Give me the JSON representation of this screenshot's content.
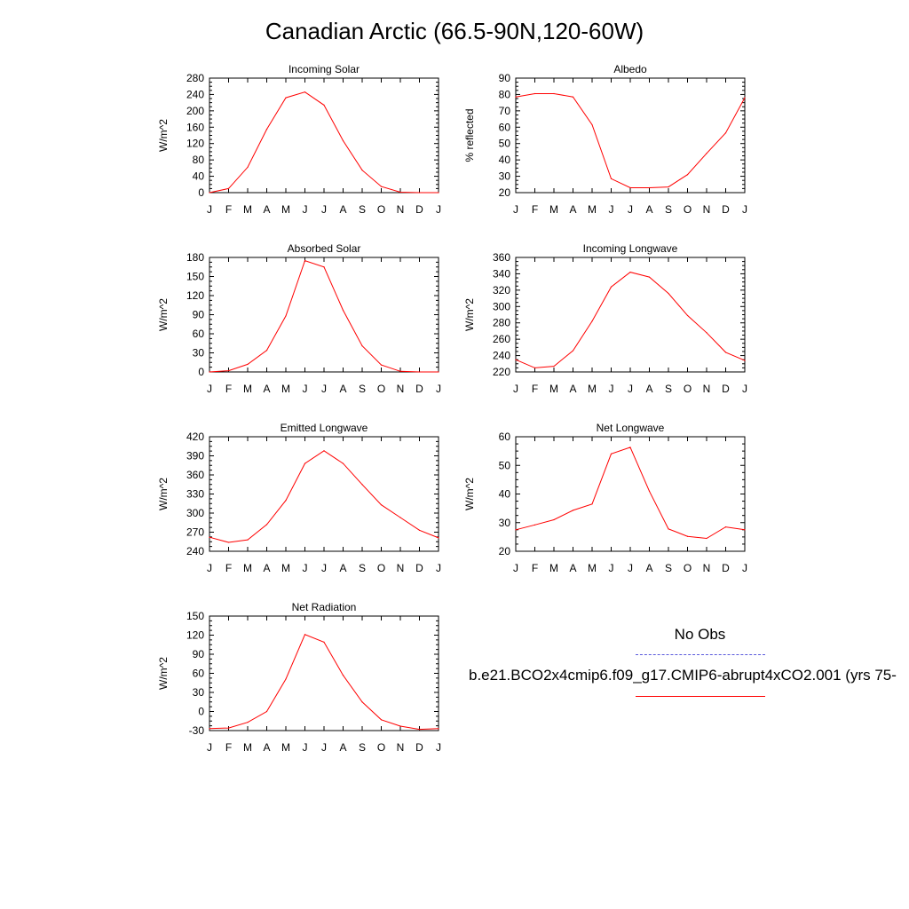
{
  "figure_title": "Canadian Arctic (66.5-90N,120-60W)",
  "colors": {
    "model_line": "#ff0000",
    "obs_line": "#5a5adc",
    "axis": "#000000"
  },
  "legend": {
    "obs_label": "No Obs",
    "model_label": "b.e21.BCO2x4cmip6.f09_g17.CMIP6-abrupt4xCO2.001 (yrs 75-"
  },
  "chart_data": [
    {
      "type": "line",
      "title": "Incoming Solar",
      "ylabel": "W/m^2",
      "categories": [
        "J",
        "F",
        "M",
        "A",
        "M",
        "J",
        "J",
        "A",
        "S",
        "O",
        "N",
        "D",
        "J"
      ],
      "ylim": [
        0,
        280
      ],
      "yticks": [
        0,
        40,
        80,
        120,
        160,
        200,
        240,
        280
      ],
      "values": [
        0,
        10,
        62,
        155,
        232,
        246,
        214,
        127,
        55,
        15,
        1,
        0,
        0
      ]
    },
    {
      "type": "line",
      "title": "Albedo",
      "ylabel": "% reflected",
      "categories": [
        "J",
        "F",
        "M",
        "A",
        "M",
        "J",
        "J",
        "A",
        "S",
        "O",
        "N",
        "D",
        "J"
      ],
      "ylim": [
        20,
        90
      ],
      "yticks": [
        20,
        30,
        40,
        50,
        60,
        70,
        80,
        90
      ],
      "values": [
        78.5,
        80.5,
        80.5,
        78.5,
        61.5,
        28.5,
        23,
        23,
        23.5,
        31,
        44,
        56.5,
        78
      ]
    },
    {
      "type": "line",
      "title": "Absorbed Solar",
      "ylabel": "W/m^2",
      "categories": [
        "J",
        "F",
        "M",
        "A",
        "M",
        "J",
        "J",
        "A",
        "S",
        "O",
        "N",
        "D",
        "J"
      ],
      "ylim": [
        0,
        180
      ],
      "yticks": [
        0,
        30,
        60,
        90,
        120,
        150,
        180
      ],
      "values": [
        0,
        2,
        12,
        34,
        88,
        175,
        165,
        97,
        41,
        11,
        1,
        0,
        0
      ]
    },
    {
      "type": "line",
      "title": "Incoming Longwave",
      "ylabel": "W/m^2",
      "categories": [
        "J",
        "F",
        "M",
        "A",
        "M",
        "J",
        "J",
        "A",
        "S",
        "O",
        "N",
        "D",
        "J"
      ],
      "ylim": [
        220,
        360
      ],
      "yticks": [
        220,
        240,
        260,
        280,
        300,
        320,
        340,
        360
      ],
      "values": [
        235,
        225,
        227,
        246,
        282,
        324,
        342,
        336,
        316,
        289,
        268,
        244,
        234
      ]
    },
    {
      "type": "line",
      "title": "Emitted Longwave",
      "ylabel": "W/m^2",
      "categories": [
        "J",
        "F",
        "M",
        "A",
        "M",
        "J",
        "J",
        "A",
        "S",
        "O",
        "N",
        "D",
        "J"
      ],
      "ylim": [
        240,
        420
      ],
      "yticks": [
        240,
        270,
        300,
        330,
        360,
        390,
        420
      ],
      "values": [
        262,
        254,
        258,
        282,
        320,
        378,
        398,
        378,
        345,
        313,
        293,
        273,
        261
      ]
    },
    {
      "type": "line",
      "title": "Net Longwave",
      "ylabel": "W/m^2",
      "categories": [
        "J",
        "F",
        "M",
        "A",
        "M",
        "J",
        "J",
        "A",
        "S",
        "O",
        "N",
        "D",
        "J"
      ],
      "ylim": [
        20,
        60
      ],
      "yticks": [
        20,
        30,
        40,
        50,
        60
      ],
      "values": [
        27.5,
        29.2,
        31,
        34.3,
        36.5,
        54,
        56.3,
        41,
        27.8,
        25.2,
        24.5,
        28.5,
        27.5
      ]
    },
    {
      "type": "line",
      "title": "Net Radiation",
      "ylabel": "W/m^2",
      "categories": [
        "J",
        "F",
        "M",
        "A",
        "M",
        "J",
        "J",
        "A",
        "S",
        "O",
        "N",
        "D",
        "J"
      ],
      "ylim": [
        -30,
        150
      ],
      "yticks": [
        -30,
        0,
        30,
        60,
        90,
        120,
        150
      ],
      "values": [
        -27,
        -26,
        -17,
        0,
        51,
        121,
        109,
        57,
        15,
        -13,
        -23,
        -28,
        -27
      ]
    }
  ]
}
